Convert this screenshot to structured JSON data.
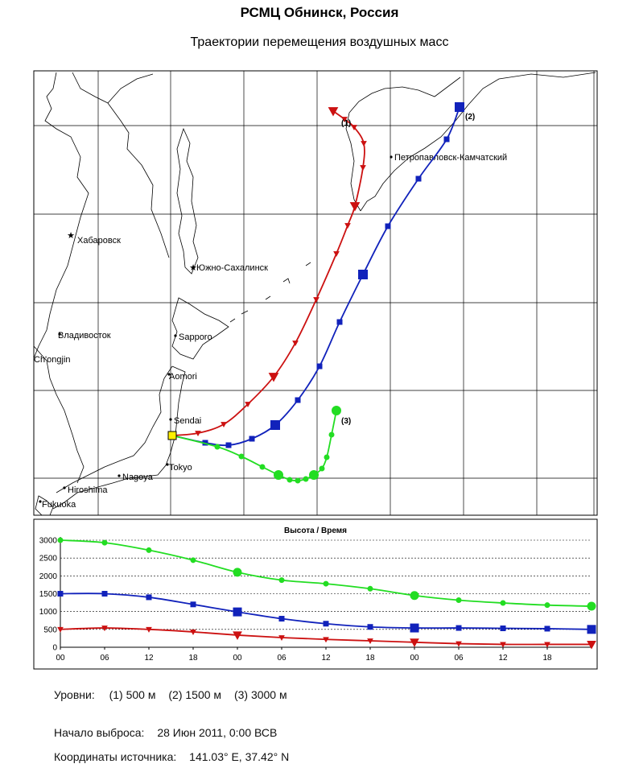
{
  "header": {
    "title": "РСМЦ  Обнинск,  Россия",
    "subtitle": "Траектории перемещения воздушных масс"
  },
  "colors": {
    "traj1": "#cc1111",
    "traj2": "#1122bb",
    "traj3": "#22dd22",
    "source": "#ffee00",
    "grid": "#000000",
    "coast": "#000000"
  },
  "chart_data": [
    {
      "type": "line",
      "title": "",
      "map_cities": [
        {
          "name": "Хабаровск"
        },
        {
          "name": "Южно-Сахалинск"
        },
        {
          "name": "Владивосток"
        },
        {
          "name": "Ch'ongjin"
        },
        {
          "name": "Sapporo"
        },
        {
          "name": "Aomori"
        },
        {
          "name": "Sendai"
        },
        {
          "name": "Tokyo"
        },
        {
          "name": "Nagoya"
        },
        {
          "name": "Hiroshima"
        },
        {
          "name": "Fukuoka"
        },
        {
          "name": "Петропавловск-Камчатский"
        }
      ],
      "series": [
        {
          "name": "(1)",
          "color": "#cc1111",
          "marker": "triangle"
        },
        {
          "name": "(2)",
          "color": "#1122bb",
          "marker": "square"
        },
        {
          "name": "(3)",
          "color": "#22dd22",
          "marker": "circle"
        }
      ]
    },
    {
      "type": "line",
      "title": "Высота / Время",
      "x_tick_labels": [
        "00",
        "06",
        "12",
        "18",
        "00",
        "06",
        "12",
        "18",
        "00",
        "06",
        "12",
        "18"
      ],
      "y_ticks": [
        0,
        500,
        1000,
        1500,
        2000,
        2500,
        3000
      ],
      "ylim": [
        0,
        3000
      ],
      "xlim_hours": [
        0,
        72
      ],
      "grid": "dashed",
      "series": [
        {
          "name": "(1)",
          "level": "500 м",
          "color": "#cc1111",
          "marker": "triangle",
          "x_hours": [
            0,
            6,
            12,
            18,
            24,
            30,
            36,
            42,
            48,
            54,
            60,
            66,
            72
          ],
          "values": [
            500,
            540,
            500,
            430,
            340,
            270,
            220,
            180,
            140,
            100,
            80,
            80,
            80
          ]
        },
        {
          "name": "(2)",
          "level": "1500 м",
          "color": "#1122bb",
          "marker": "square",
          "x_hours": [
            0,
            6,
            12,
            18,
            24,
            30,
            36,
            42,
            48,
            54,
            60,
            66,
            72
          ],
          "values": [
            1500,
            1500,
            1400,
            1200,
            990,
            800,
            660,
            570,
            540,
            540,
            530,
            520,
            500
          ]
        },
        {
          "name": "(3)",
          "level": "3000 м",
          "color": "#22dd22",
          "marker": "circle",
          "x_hours": [
            0,
            6,
            12,
            18,
            24,
            30,
            36,
            42,
            48,
            54,
            60,
            66,
            72
          ],
          "values": [
            3000,
            2930,
            2720,
            2440,
            2100,
            1880,
            1780,
            1640,
            1450,
            1320,
            1240,
            1180,
            1150
          ]
        }
      ]
    }
  ],
  "info": {
    "levels_label": "Уровни:",
    "level1": "(1) 500 м",
    "level2": "(2) 1500 м",
    "level3": "(3) 3000 м",
    "start_label": "Начало выброса:",
    "start_value": "28 Июн 2011,  0:00 ВСВ",
    "coords_label": "Координаты источника:",
    "coords_value": "141.03° E,  37.42° N"
  }
}
